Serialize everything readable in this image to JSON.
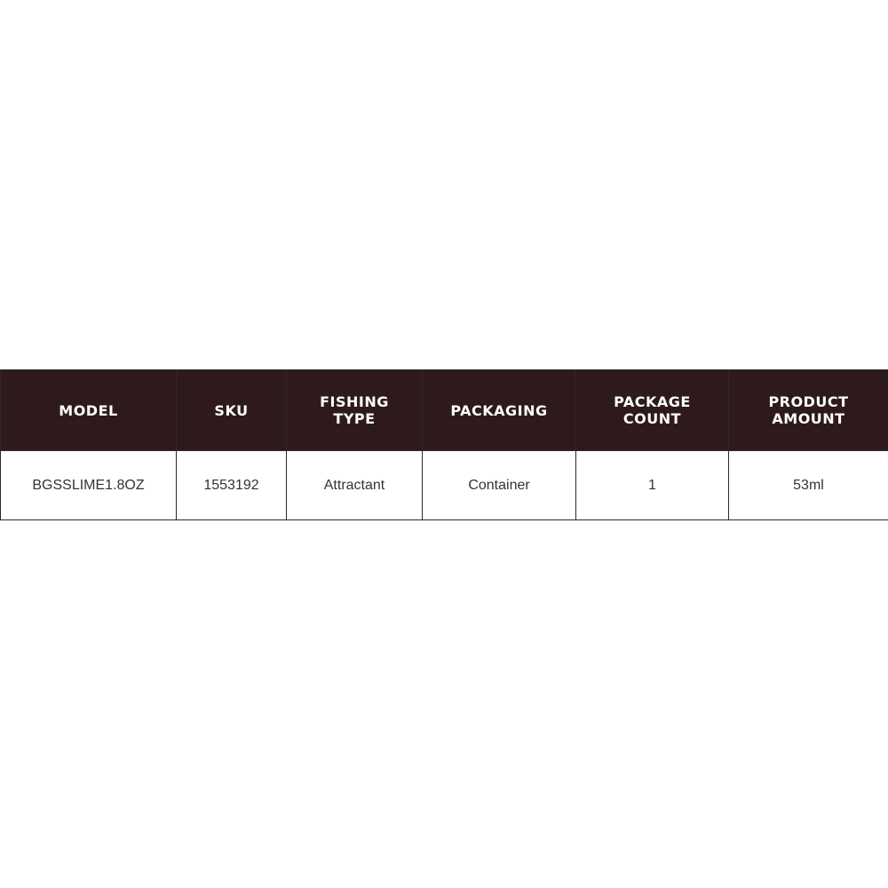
{
  "header_color": "#2e1a1c",
  "table": {
    "headers": [
      "MODEL",
      "SKU",
      "FISHING TYPE",
      "PACKAGING",
      "PACKAGE COUNT",
      "PRODUCT AMOUNT"
    ],
    "rows": [
      [
        "BGSSLIME1.8OZ",
        "1553192",
        "Attractant",
        "Container",
        "1",
        "53ml"
      ]
    ]
  }
}
